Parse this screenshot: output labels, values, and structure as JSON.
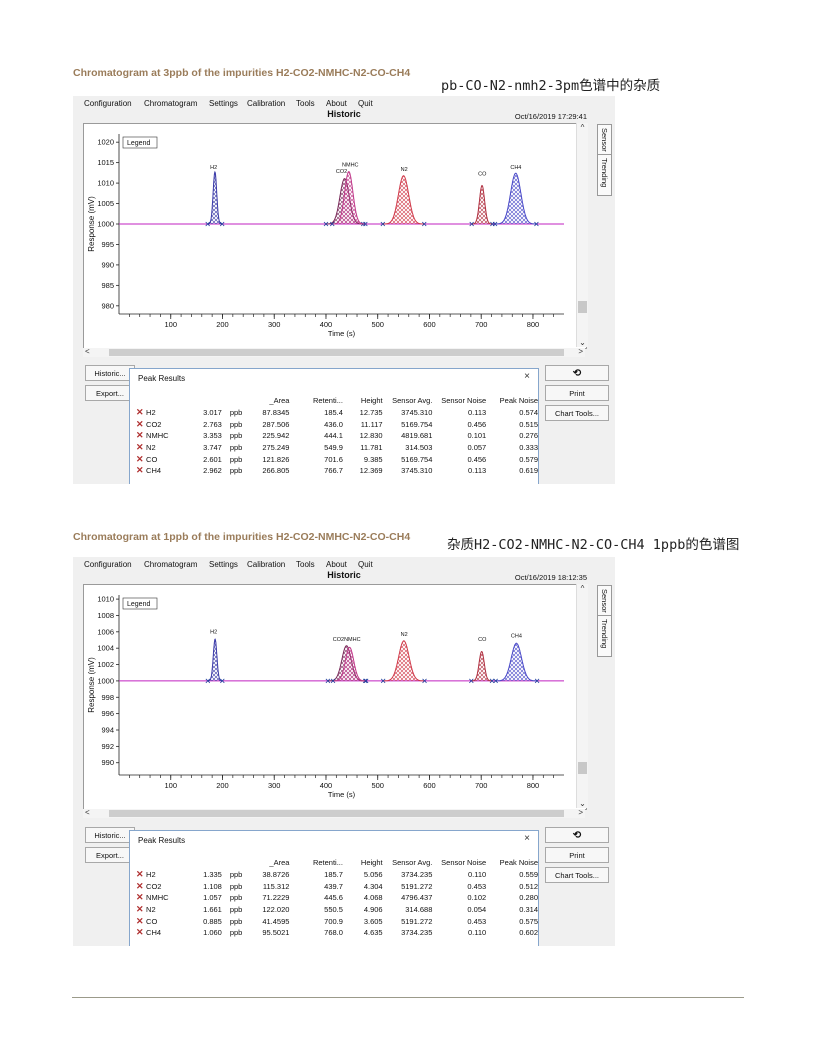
{
  "section1": {
    "caption": "Chromatogram at 3ppb of the impurities H2-CO2-NMHC-N2-CO-CH4",
    "cn_caption": "pb-CO-N2-nmh2-3pm色谱中的杂质"
  },
  "section2": {
    "caption": "Chromatogram at 1ppb of the impurities H2-CO2-NMHC-N2-CO-CH4",
    "cn_caption": "杂质H2-CO2-NMHC-N2-CO-CH4 1ppb的色谱图"
  },
  "ui": {
    "menu": [
      "Configuration",
      "Chromatogram",
      "Settings",
      "Calibration",
      "Tools",
      "About",
      "Quit"
    ],
    "historic_title": "Historic",
    "tab_sensor": "Sensor",
    "tab_trending": "Trending",
    "legend_label": "Legend",
    "buttons": {
      "historic": "Historic...",
      "export": "Export...",
      "refresh_icon": "refresh-icon",
      "print": "Print",
      "chart_tools": "Chart Tools..."
    },
    "peak_results_title": "Peak Results",
    "close_symbol": "×",
    "table_headers": [
      "",
      "",
      "",
      "_Area",
      "Retenti...",
      "Height",
      "Sensor Avg.",
      "Sensor Noise",
      "Peak Noise"
    ],
    "unit": "ppb"
  },
  "screenshots": [
    {
      "datetime": "Oct/16/2019 17:29:41",
      "chart_data": {
        "type": "line",
        "title": "",
        "xlabel": "Time (s)",
        "ylabel": "Response (mV)",
        "xlim": [
          0,
          860
        ],
        "ylim": [
          978,
          1022
        ],
        "xticks": [
          100,
          200,
          300,
          400,
          500,
          600,
          700,
          800
        ],
        "yticks": [
          980,
          985,
          990,
          995,
          1000,
          1005,
          1010,
          1015,
          1020
        ],
        "baseline": 1000,
        "peak_labels": [
          {
            "text": "H2",
            "x": 183,
            "y": 1013.5
          },
          {
            "text": "CO2",
            "x": 430,
            "y": 1012.5
          },
          {
            "text": "NMHC",
            "x": 447,
            "y": 1014.0
          },
          {
            "text": "N2",
            "x": 551,
            "y": 1013.0
          },
          {
            "text": "CO",
            "x": 702,
            "y": 1011.8
          },
          {
            "text": "CH4",
            "x": 767,
            "y": 1013.5
          }
        ],
        "series": [
          {
            "name": "H2",
            "color": "#3b3ba8",
            "center": 185.4,
            "height": 12.7,
            "width": 3.5
          },
          {
            "name": "CO2",
            "color": "#7a2a5a",
            "center": 436.0,
            "height": 11.1,
            "width": 9
          },
          {
            "name": "NMHC",
            "color": "#c03a8a",
            "center": 444.1,
            "height": 12.8,
            "width": 8
          },
          {
            "name": "N2",
            "color": "#d03a4a",
            "center": 549.9,
            "height": 11.8,
            "width": 10
          },
          {
            "name": "CO",
            "color": "#b03040",
            "center": 701.6,
            "height": 9.4,
            "width": 5
          },
          {
            "name": "CH4",
            "color": "#4a4ac8",
            "center": 766.7,
            "height": 12.4,
            "width": 10
          }
        ]
      },
      "peaks": [
        {
          "name": "H2",
          "conc": "3.017",
          "area": "87.8345",
          "ret": "185.4",
          "height": "12.735",
          "avg": "3745.310",
          "snoise": "0.113",
          "pnoise": "0.574"
        },
        {
          "name": "CO2",
          "conc": "2.763",
          "area": "287.506",
          "ret": "436.0",
          "height": "11.117",
          "avg": "5169.754",
          "snoise": "0.456",
          "pnoise": "0.515"
        },
        {
          "name": "NMHC",
          "conc": "3.353",
          "area": "225.942",
          "ret": "444.1",
          "height": "12.830",
          "avg": "4819.681",
          "snoise": "0.101",
          "pnoise": "0.276"
        },
        {
          "name": "N2",
          "conc": "3.747",
          "area": "275.249",
          "ret": "549.9",
          "height": "11.781",
          "avg": "314.503",
          "snoise": "0.057",
          "pnoise": "0.333"
        },
        {
          "name": "CO",
          "conc": "2.601",
          "area": "121.826",
          "ret": "701.6",
          "height": "9.385",
          "avg": "5169.754",
          "snoise": "0.456",
          "pnoise": "0.579"
        },
        {
          "name": "CH4",
          "conc": "2.962",
          "area": "266.805",
          "ret": "766.7",
          "height": "12.369",
          "avg": "3745.310",
          "snoise": "0.113",
          "pnoise": "0.619"
        }
      ]
    },
    {
      "datetime": "Oct/16/2019 18:12:35",
      "chart_data": {
        "type": "line",
        "title": "",
        "xlabel": "Time (s)",
        "ylabel": "Response (mV)",
        "xlim": [
          0,
          860
        ],
        "ylim": [
          988.5,
          1010.5
        ],
        "xticks": [
          100,
          200,
          300,
          400,
          500,
          600,
          700,
          800
        ],
        "yticks": [
          990,
          992,
          994,
          996,
          998,
          1000,
          1002,
          1004,
          1006,
          1008,
          1010
        ],
        "baseline": 1000,
        "peak_labels": [
          {
            "text": "H2",
            "x": 183,
            "y": 1005.8
          },
          {
            "text": "CO2NMHC",
            "x": 440,
            "y": 1004.9
          },
          {
            "text": "N2",
            "x": 551,
            "y": 1005.5
          },
          {
            "text": "CO",
            "x": 702,
            "y": 1004.9
          },
          {
            "text": "CH4",
            "x": 768,
            "y": 1005.3
          }
        ],
        "series": [
          {
            "name": "H2",
            "color": "#3b3ba8",
            "center": 185.7,
            "height": 5.1,
            "width": 3.5
          },
          {
            "name": "CO2",
            "color": "#7a2a5a",
            "center": 439.7,
            "height": 4.3,
            "width": 9
          },
          {
            "name": "NMHC",
            "color": "#c03a8a",
            "center": 445.6,
            "height": 4.1,
            "width": 8
          },
          {
            "name": "N2",
            "color": "#d03a4a",
            "center": 550.5,
            "height": 4.9,
            "width": 10
          },
          {
            "name": "CO",
            "color": "#b03040",
            "center": 700.9,
            "height": 3.6,
            "width": 5
          },
          {
            "name": "CH4",
            "color": "#4a4ac8",
            "center": 768.0,
            "height": 4.6,
            "width": 10
          }
        ]
      },
      "peaks": [
        {
          "name": "H2",
          "conc": "1.335",
          "area": "38.8726",
          "ret": "185.7",
          "height": "5.056",
          "avg": "3734.235",
          "snoise": "0.110",
          "pnoise": "0.559"
        },
        {
          "name": "CO2",
          "conc": "1.108",
          "area": "115.312",
          "ret": "439.7",
          "height": "4.304",
          "avg": "5191.272",
          "snoise": "0.453",
          "pnoise": "0.512"
        },
        {
          "name": "NMHC",
          "conc": "1.057",
          "area": "71.2229",
          "ret": "445.6",
          "height": "4.068",
          "avg": "4796.437",
          "snoise": "0.102",
          "pnoise": "0.280"
        },
        {
          "name": "N2",
          "conc": "1.661",
          "area": "122.020",
          "ret": "550.5",
          "height": "4.906",
          "avg": "314.688",
          "snoise": "0.054",
          "pnoise": "0.314"
        },
        {
          "name": "CO",
          "conc": "0.885",
          "area": "41.4595",
          "ret": "700.9",
          "height": "3.605",
          "avg": "5191.272",
          "snoise": "0.453",
          "pnoise": "0.575"
        },
        {
          "name": "CH4",
          "conc": "1.060",
          "area": "95.5021",
          "ret": "768.0",
          "height": "4.635",
          "avg": "3734.235",
          "snoise": "0.110",
          "pnoise": "0.602"
        }
      ]
    }
  ]
}
